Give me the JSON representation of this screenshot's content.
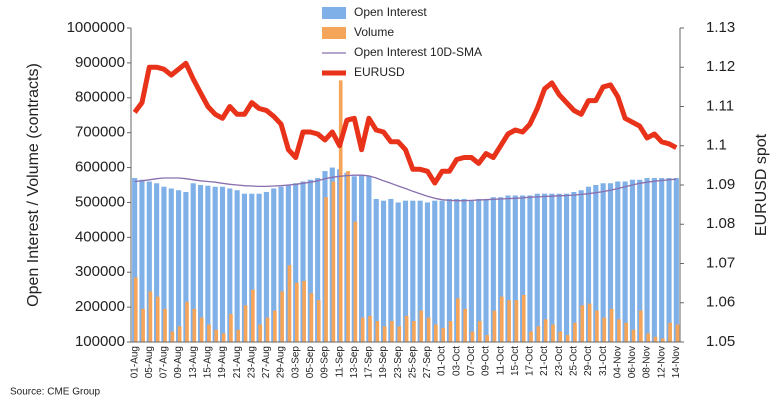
{
  "chart_data": {
    "type": "bar",
    "categories": [
      "01-Aug",
      null,
      "05-Aug",
      null,
      "07-Aug",
      null,
      "09-Aug",
      null,
      "13-Aug",
      null,
      "15-Aug",
      null,
      "19-Aug",
      null,
      "21-Aug",
      null,
      "23-Aug",
      null,
      "27-Aug",
      null,
      "29-Aug",
      null,
      "03-Sep",
      null,
      "05-Sep",
      null,
      "09-Sep",
      null,
      "11-Sep",
      null,
      "13-Sep",
      null,
      "17-Sep",
      null,
      "19-Sep",
      null,
      "23-Sep",
      null,
      "25-Sep",
      null,
      "27-Sep",
      null,
      "01-Oct",
      null,
      "03-Oct",
      null,
      "07-Oct",
      null,
      "09-Oct",
      null,
      "11-Oct",
      null,
      "15-Oct",
      null,
      "17-Oct",
      null,
      "21-Oct",
      null,
      "23-Oct",
      null,
      "25-Oct",
      null,
      "29-Oct",
      null,
      "31-Oct",
      null,
      "04-Nov",
      null,
      "06-Nov",
      null,
      "08-Nov",
      null,
      "12-Nov",
      null,
      "14-Nov"
    ],
    "series": [
      {
        "name": "Open Interest",
        "type": "bar",
        "color": "#7fb0e8",
        "values": [
          570000,
          565000,
          560000,
          555000,
          545000,
          540000,
          535000,
          530000,
          555000,
          550000,
          548000,
          545000,
          545000,
          540000,
          535000,
          525000,
          525000,
          525000,
          530000,
          540000,
          545000,
          550000,
          555000,
          560000,
          565000,
          570000,
          590000,
          600000,
          595000,
          585000,
          575000,
          580000,
          575000,
          510000,
          505000,
          510000,
          500000,
          505000,
          505000,
          505000,
          500000,
          505000,
          505000,
          510000,
          510000,
          510000,
          505000,
          510000,
          510000,
          515000,
          515000,
          520000,
          520000,
          520000,
          520000,
          525000,
          525000,
          525000,
          525000,
          525000,
          530000,
          535000,
          545000,
          550000,
          555000,
          555000,
          560000,
          560000,
          565000,
          565000,
          570000,
          570000,
          570000,
          570000,
          570000
        ]
      },
      {
        "name": "Volume",
        "type": "bar",
        "color": "#f5a55a",
        "values": [
          285000,
          195000,
          245000,
          230000,
          195000,
          130000,
          145000,
          215000,
          195000,
          170000,
          150000,
          135000,
          125000,
          180000,
          135000,
          205000,
          250000,
          150000,
          170000,
          190000,
          245000,
          320000,
          270000,
          275000,
          240000,
          220000,
          515000,
          560000,
          850000,
          590000,
          445000,
          170000,
          175000,
          160000,
          145000,
          160000,
          145000,
          175000,
          160000,
          190000,
          170000,
          150000,
          140000,
          160000,
          225000,
          195000,
          130000,
          160000,
          120000,
          190000,
          230000,
          220000,
          220000,
          235000,
          130000,
          145000,
          165000,
          150000,
          130000,
          120000,
          155000,
          205000,
          210000,
          190000,
          170000,
          195000,
          165000,
          155000,
          135000,
          190000,
          125000,
          115000,
          110000,
          155000,
          150000
        ]
      },
      {
        "name": "Open Interest 10D-SMA",
        "type": "line",
        "color": "#8a6fae",
        "values": [
          560000,
          562000,
          565000,
          568000,
          570000,
          570000,
          570000,
          568000,
          565000,
          562000,
          560000,
          558000,
          555000,
          552000,
          550000,
          548000,
          547000,
          546000,
          546000,
          547000,
          548000,
          550000,
          552000,
          555000,
          558000,
          562000,
          568000,
          572000,
          575000,
          577000,
          578000,
          578000,
          576000,
          570000,
          562000,
          555000,
          547000,
          540000,
          532000,
          525000,
          518000,
          512000,
          508000,
          506000,
          505000,
          505000,
          506000,
          507000,
          508000,
          509000,
          510000,
          511000,
          512000,
          513000,
          515000,
          516000,
          517000,
          518000,
          519000,
          520000,
          521000,
          523000,
          525000,
          528000,
          531000,
          535000,
          540000,
          545000,
          550000,
          555000,
          558000,
          561000,
          563000,
          565000,
          567000
        ]
      },
      {
        "name": "EURUSD",
        "type": "line",
        "axis": "y2",
        "color": "#e8321a",
        "values": [
          1.1085,
          1.111,
          1.12,
          1.12,
          1.1195,
          1.118,
          1.1195,
          1.121,
          1.117,
          1.1135,
          1.11,
          1.108,
          1.107,
          1.11,
          1.108,
          1.108,
          1.111,
          1.1095,
          1.109,
          1.1075,
          1.1055,
          1.099,
          1.097,
          1.1035,
          1.1035,
          1.103,
          1.1015,
          1.1035,
          1.1,
          1.1065,
          1.107,
          1.099,
          1.107,
          1.104,
          1.1035,
          1.101,
          1.101,
          1.099,
          1.094,
          1.094,
          1.0935,
          1.0905,
          1.0935,
          1.0935,
          1.0965,
          1.097,
          1.097,
          1.0955,
          1.098,
          1.097,
          1.1,
          1.103,
          1.104,
          1.1035,
          1.1055,
          1.1095,
          1.1145,
          1.116,
          1.113,
          1.111,
          1.109,
          1.108,
          1.1115,
          1.1115,
          1.115,
          1.1155,
          1.1125,
          1.107,
          1.106,
          1.105,
          1.102,
          1.103,
          1.101,
          1.1005,
          1.0995
        ]
      }
    ],
    "ylim": [
      100000,
      1000000
    ],
    "yticks": [
      100000,
      200000,
      300000,
      400000,
      500000,
      600000,
      700000,
      800000,
      900000,
      1000000
    ],
    "y2lim": [
      1.05,
      1.13
    ],
    "y2ticks": [
      1.05,
      1.06,
      1.07,
      1.08,
      1.09,
      1.1,
      1.11,
      1.12,
      1.13
    ],
    "ylabel": "Open Interest / Volume (contracts)",
    "y2label": "EURUSD spot",
    "legend": "top",
    "source": "Source: CME Group"
  }
}
